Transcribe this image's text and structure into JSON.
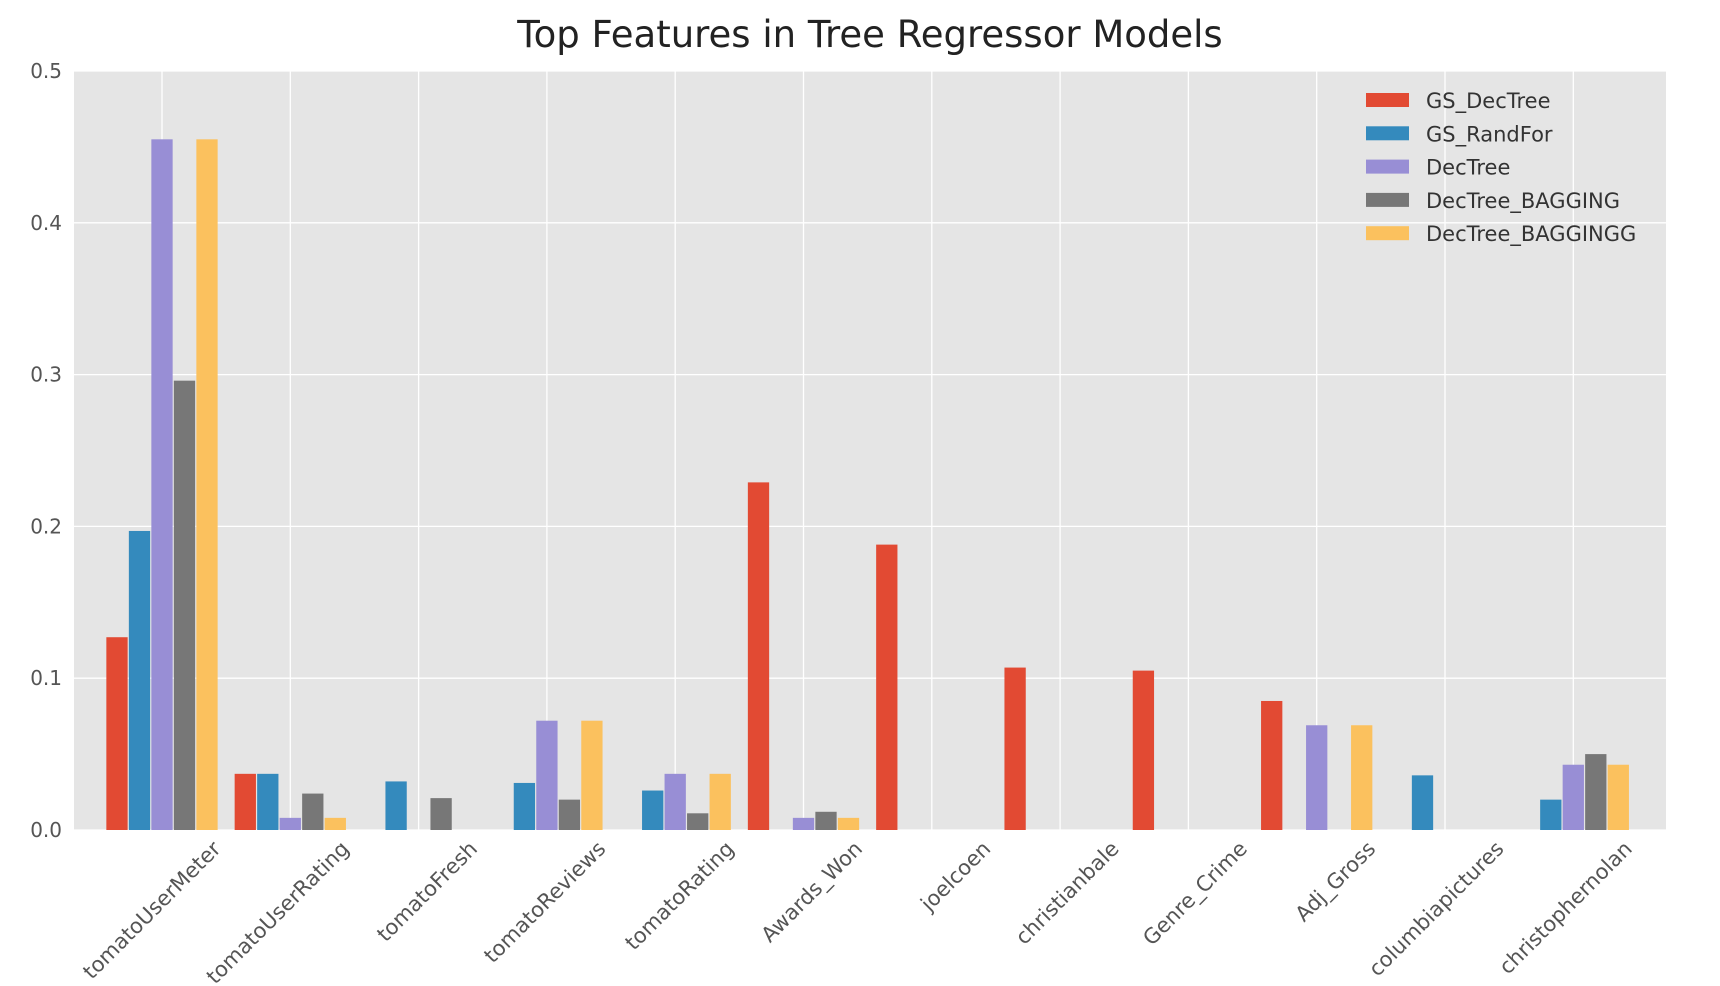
{
  "chart_data": {
    "type": "bar",
    "title": "Top Features in Tree Regressor Models",
    "xlabel": "",
    "ylabel": "",
    "ylim": [
      0,
      0.5
    ],
    "yticks": [
      "0.0",
      "0.1",
      "0.2",
      "0.3",
      "0.4",
      "0.5"
    ],
    "grid": true,
    "legend_position": "top-right",
    "categories": [
      "tomatoUserMeter",
      "tomatoUserRating",
      "tomatoFresh",
      "tomatoReviews",
      "tomatoRating",
      "Awards_Won",
      "joelcoen",
      "christianbale",
      "Genre_Crime",
      "Adj_Gross",
      "columbiapictures",
      "christophernolan"
    ],
    "series": [
      {
        "name": "GS_DecTree",
        "color": "#E24A33",
        "values": [
          0.127,
          0.037,
          0,
          0,
          0,
          0.229,
          0.188,
          0.107,
          0.105,
          0.085,
          0,
          0
        ]
      },
      {
        "name": "GS_RandFor",
        "color": "#348ABD",
        "values": [
          0.197,
          0.037,
          0.032,
          0.031,
          0.026,
          0,
          0,
          0,
          0,
          0,
          0.036,
          0.02
        ]
      },
      {
        "name": "DecTree",
        "color": "#988ED5",
        "values": [
          0.455,
          0.008,
          0,
          0.072,
          0.037,
          0.008,
          0,
          0,
          0,
          0.069,
          0,
          0.043
        ]
      },
      {
        "name": "DecTree_BAGGING",
        "color": "#777777",
        "values": [
          0.296,
          0.024,
          0.021,
          0.02,
          0.011,
          0.012,
          0,
          0,
          0,
          0,
          0,
          0.05
        ]
      },
      {
        "name": "DecTree_BAGGINGG",
        "color": "#FBC15E",
        "values": [
          0.455,
          0.008,
          0,
          0.072,
          0.037,
          0.008,
          0,
          0,
          0,
          0.069,
          0,
          0.043
        ]
      }
    ]
  }
}
